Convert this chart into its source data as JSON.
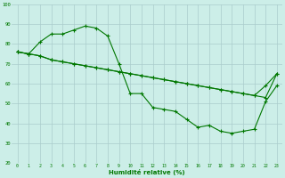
{
  "title": "",
  "xlabel": "Humidité relative (%)",
  "ylabel": "",
  "bg_color": "#cceee8",
  "grid_color": "#aacccc",
  "line_color": "#007700",
  "marker": "+",
  "xlim": [
    -0.5,
    23.5
  ],
  "ylim": [
    20,
    100
  ],
  "xticks": [
    0,
    1,
    2,
    3,
    4,
    5,
    6,
    7,
    8,
    9,
    10,
    11,
    12,
    13,
    14,
    15,
    16,
    17,
    18,
    19,
    20,
    21,
    22,
    23
  ],
  "yticks": [
    20,
    30,
    40,
    50,
    60,
    70,
    80,
    90,
    100
  ],
  "line1": [
    76,
    75,
    81,
    85,
    85,
    87,
    89,
    88,
    84,
    70,
    55,
    55,
    48,
    47,
    46,
    42,
    38,
    39,
    36,
    35,
    36,
    37,
    51,
    59
  ],
  "line2": [
    76,
    75,
    74,
    72,
    71,
    70,
    69,
    68,
    67,
    66,
    65,
    64,
    63,
    62,
    61,
    60,
    59,
    58,
    57,
    56,
    55,
    54,
    59,
    65
  ],
  "line3": [
    76,
    75,
    74,
    72,
    71,
    70,
    69,
    68,
    67,
    66,
    65,
    64,
    63,
    62,
    61,
    60,
    59,
    58,
    57,
    56,
    55,
    54,
    53,
    65
  ]
}
